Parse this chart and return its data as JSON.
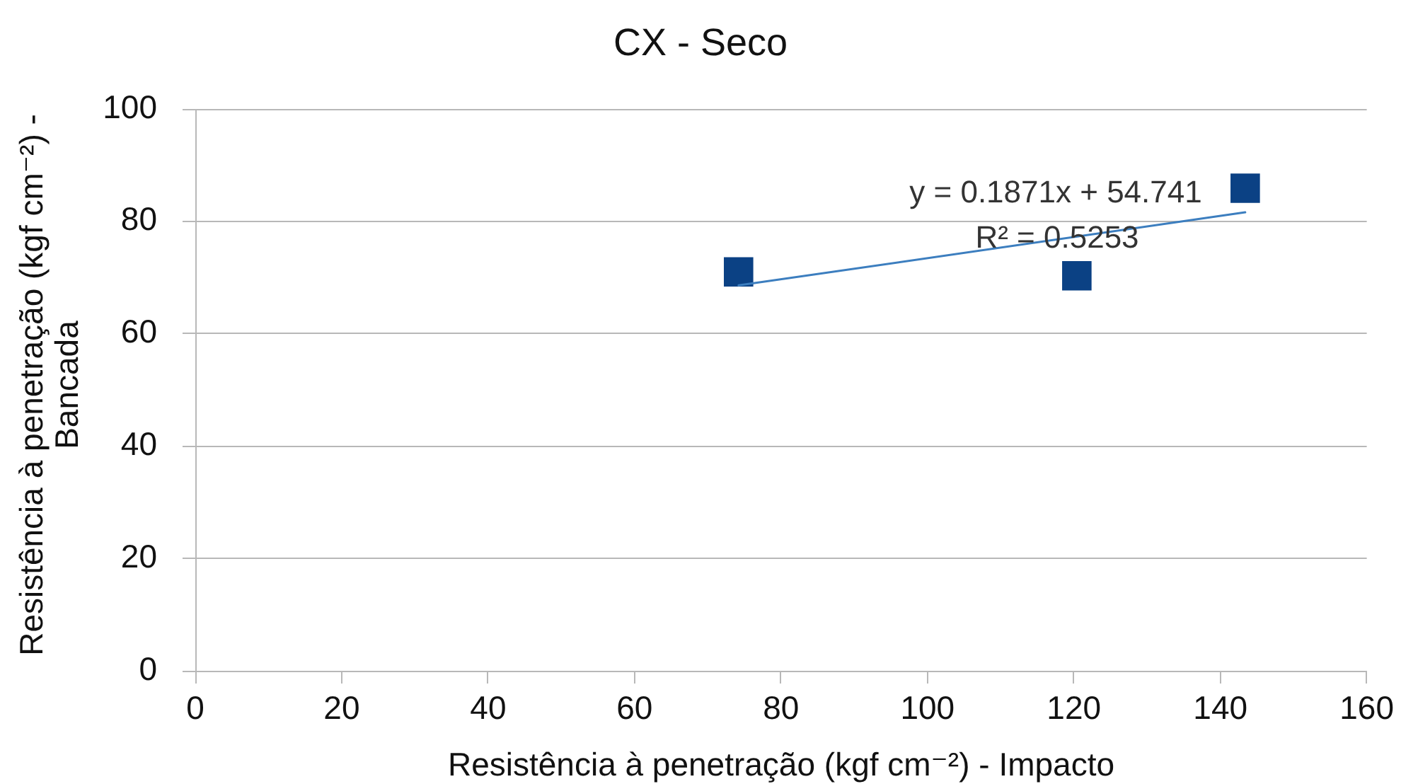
{
  "chart_data": {
    "type": "scatter",
    "title": "CX - Seco",
    "xlabel": "Resistência à penetração (kgf cm⁻²) - Impacto",
    "ylabel": "Resistência à penetração (kgf cm⁻²) - Bancada",
    "x": [
      74.2,
      120.4,
      143.4
    ],
    "series": [
      {
        "type": "scatter",
        "color": "#0b4184",
        "values": [
          71.0,
          70.3,
          85.9
        ],
        "marker": "square"
      },
      {
        "type": "line",
        "color": "#3c7ebf",
        "x": [
          74.2,
          143.4
        ],
        "values": [
          68.6,
          81.6
        ],
        "marker": "none",
        "line_style": "solid"
      }
    ],
    "xlim": [
      0,
      160
    ],
    "xticks": [
      0,
      20,
      40,
      60,
      80,
      100,
      120,
      140,
      160
    ],
    "ylim": [
      0,
      100
    ],
    "yticks": [
      0,
      20,
      40,
      60,
      80,
      100
    ],
    "grid": "y",
    "annotations": [
      "y = 0.1871x + 54.741",
      "R² = 0.5253"
    ]
  }
}
